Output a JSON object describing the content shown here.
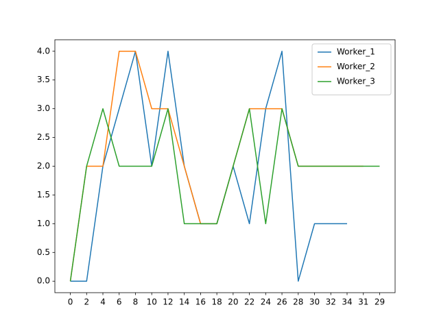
{
  "chart_data": {
    "type": "line",
    "categories": [
      "0",
      "2",
      "4",
      "6",
      "8",
      "10",
      "12",
      "14",
      "16",
      "18",
      "20",
      "22",
      "24",
      "26",
      "28",
      "30",
      "32",
      "34",
      "31",
      "29"
    ],
    "series": [
      {
        "name": "Worker_1",
        "color": "#1f77b4",
        "values": [
          0,
          0,
          2,
          3,
          4,
          2,
          4,
          2,
          1,
          1,
          2,
          1,
          3,
          4,
          0,
          1,
          1,
          1,
          null,
          null
        ]
      },
      {
        "name": "Worker_2",
        "color": "#ff7f0e",
        "values": [
          0,
          2,
          2,
          4,
          4,
          3,
          3,
          2,
          1,
          1,
          2,
          3,
          3,
          3,
          2,
          2,
          2,
          2,
          2,
          null
        ]
      },
      {
        "name": "Worker_3",
        "color": "#2ca02c",
        "values": [
          0,
          2,
          3,
          2,
          2,
          2,
          3,
          1,
          1,
          1,
          2,
          3,
          1,
          3,
          2,
          2,
          2,
          2,
          2,
          2
        ]
      }
    ],
    "ylim": [
      -0.2,
      4.2
    ],
    "yticks": [
      {
        "value": 0,
        "label": "0.0"
      },
      0.5,
      {
        "value": 1,
        "label": "1.0"
      },
      1.5,
      {
        "value": 2,
        "label": "2.0"
      },
      2.5,
      {
        "value": 3,
        "label": "3.0"
      },
      3.5,
      {
        "value": 4,
        "label": "4.0"
      }
    ],
    "legend": "upper right"
  }
}
